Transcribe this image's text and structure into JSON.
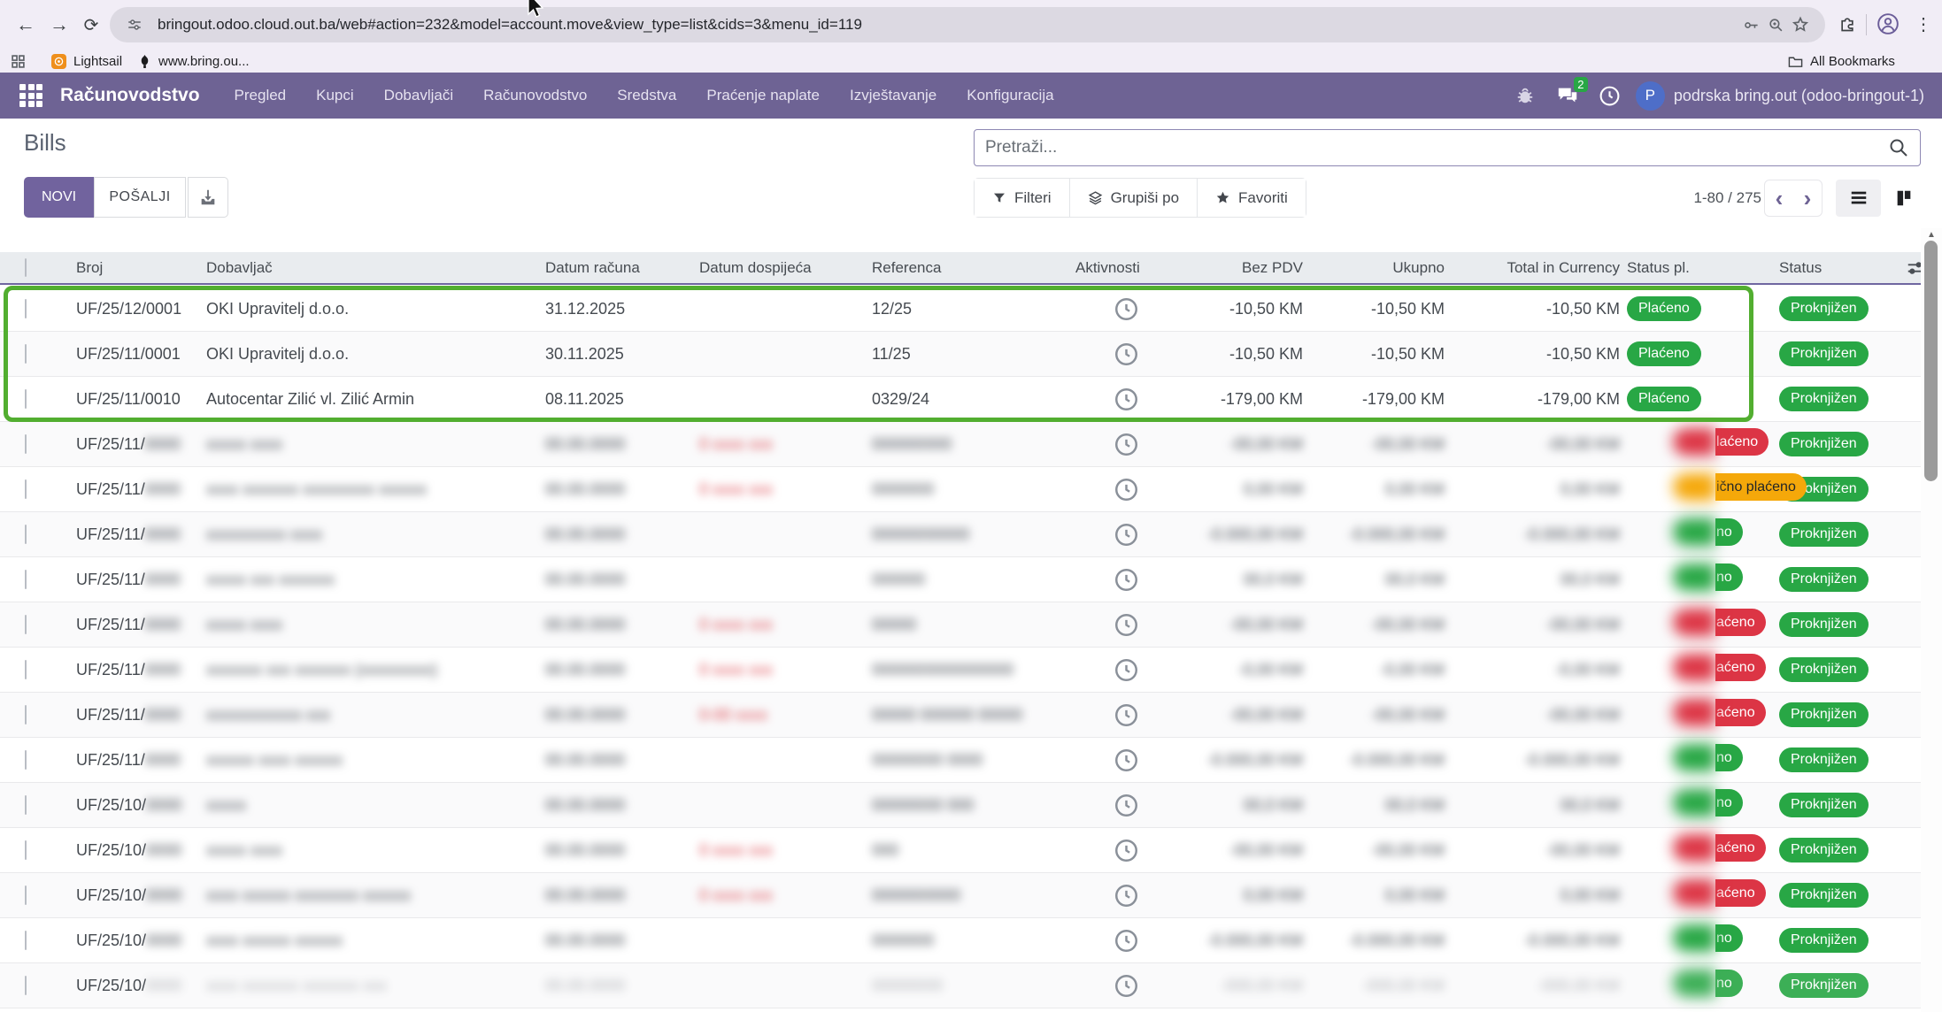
{
  "browser": {
    "url": "bringout.odoo.cloud.out.ba/web#action=232&model=account.move&view_type=list&cids=3&menu_id=119",
    "bookmark1": "Lightsail",
    "bookmark2": "www.bring.ou...",
    "all_bookmarks": "All Bookmarks"
  },
  "nav": {
    "app_name": "Računovodstvo",
    "menu_items": [
      "Pregled",
      "Kupci",
      "Dobavljači",
      "Računovodstvo",
      "Sredstva",
      "Praćenje naplate",
      "Izvještavanje",
      "Konfiguracija"
    ],
    "message_count": "2",
    "user_initial": "P",
    "user_name": "podrska bring.out (odoo-bringout-1)"
  },
  "control_panel": {
    "title": "Bills",
    "new_button": "NOVI",
    "send_button": "POŠALJI",
    "search_placeholder": "Pretraži...",
    "filters_button": "Filteri",
    "groupby_button": "Grupiši po",
    "favorites_button": "Favoriti",
    "pager": "1-80 / 275"
  },
  "annotation_color": "#52ae30",
  "status_colors": {
    "green": "#28a745",
    "red": "#dc3545",
    "orange": "#f5a80a"
  },
  "table": {
    "headers": [
      "Broj",
      "Dobavljač",
      "Datum računa",
      "Datum dospijeća",
      "Referenca",
      "Aktivnosti",
      "Bez PDV",
      "Ukupno",
      "Total in Currency",
      "Status pl.",
      "Status"
    ],
    "rows": [
      {
        "redacted": false,
        "number": "UF/25/12/0001",
        "supplier": "OKI Upravitelj d.o.o.",
        "invoice_date": "31.12.2025",
        "due_date": "",
        "reference": "12/25",
        "untaxed": "-10,50 KM",
        "total": "-10,50 KM",
        "total_currency": "-10,50 KM",
        "payment_status": {
          "label": "Plaćeno",
          "variant": "green"
        },
        "status": "Proknjižen"
      },
      {
        "redacted": false,
        "number": "UF/25/11/0001",
        "supplier": "OKI Upravitelj d.o.o.",
        "invoice_date": "30.11.2025",
        "due_date": "",
        "reference": "11/25",
        "untaxed": "-10,50 KM",
        "total": "-10,50 KM",
        "total_currency": "-10,50 KM",
        "payment_status": {
          "label": "Plaćeno",
          "variant": "green"
        },
        "status": "Proknjižen"
      },
      {
        "redacted": false,
        "number": "UF/25/11/0010",
        "supplier": "Autocentar Zilić vl. Zilić Armin",
        "invoice_date": "08.11.2025",
        "due_date": "",
        "reference": "0329/24",
        "untaxed": "-179,00 KM",
        "total": "-179,00 KM",
        "total_currency": "-179,00 KM",
        "payment_status": {
          "label": "Plaćeno",
          "variant": "green"
        },
        "status": "Proknjižen"
      },
      {
        "redacted": true,
        "number_prefix": "UF/25/11/",
        "number_blob": "0000",
        "supplier_blob": "xxxxx xxxx",
        "date_blob": "00.00.0000",
        "due_blob": "0 xxxx xxx",
        "ref_blob": "000000000",
        "amt_blob": "-00,00 KM",
        "payment_status": {
          "fragment": "laćeno",
          "variant": "red"
        },
        "status": "Proknjižen",
        "faded": false
      },
      {
        "redacted": true,
        "number_prefix": "UF/25/11/",
        "number_blob": "0000",
        "supplier_blob": "xxxx xxxxxxx xxxxxxxxx xxxxxx",
        "date_blob": "00.00.0000",
        "due_blob": "0 xxxx xxx",
        "ref_blob": "0000000",
        "amt_blob": "0,00 KM",
        "payment_status": {
          "fragment": "ično plaćeno",
          "variant": "orange"
        },
        "status": "Proknjižen",
        "faded": false
      },
      {
        "redacted": true,
        "number_prefix": "UF/25/11/",
        "number_blob": "0000",
        "supplier_blob": "xxxxxxxxxx xxxx",
        "date_blob": "00.00.0000",
        "due_blob": "",
        "ref_blob": "00000000000",
        "amt_blob": "-0.000,00 KM",
        "payment_status": {
          "fragment": "no",
          "variant": "green"
        },
        "status": "Proknjižen",
        "faded": false
      },
      {
        "redacted": true,
        "number_prefix": "UF/25/11/",
        "number_blob": "0000",
        "supplier_blob": "xxxxx xxx xxxxxxx",
        "date_blob": "00.00.0000",
        "due_blob": "",
        "ref_blob": "000000",
        "amt_blob": "00,0 KM",
        "payment_status": {
          "fragment": "no",
          "variant": "green"
        },
        "status": "Proknjižen",
        "faded": false
      },
      {
        "redacted": true,
        "number_prefix": "UF/25/11/",
        "number_blob": "0000",
        "supplier_blob": "xxxxx xxxx",
        "date_blob": "00.00.0000",
        "due_blob": "0 xxxx xxx",
        "ref_blob": "00000",
        "amt_blob": "-00,00 KM",
        "payment_status": {
          "fragment": "aćeno",
          "variant": "red"
        },
        "status": "Proknjižen",
        "faded": false
      },
      {
        "redacted": true,
        "number_prefix": "UF/25/11/",
        "number_blob": "0000",
        "supplier_blob": "xxxxxxx xxx xxxxxxx (xxxxxxxxx)",
        "date_blob": "00.00.0000",
        "due_blob": "0 xxxx xxx",
        "ref_blob": "0000000000000000",
        "amt_blob": "-0,00 KM",
        "payment_status": {
          "fragment": "aćeno",
          "variant": "red"
        },
        "status": "Proknjižen",
        "faded": false
      },
      {
        "redacted": true,
        "number_prefix": "UF/25/11/",
        "number_blob": "0000",
        "supplier_blob": "xxxxxxxxxxxx xxx",
        "date_blob": "00.00.0000",
        "due_blob": "0-00 xxxx",
        "ref_blob": "00000 000000 00000",
        "amt_blob": "-00,00 KM",
        "payment_status": {
          "fragment": "aćeno",
          "variant": "red"
        },
        "status": "Proknjižen",
        "faded": false
      },
      {
        "redacted": true,
        "number_prefix": "UF/25/11/",
        "number_blob": "0000",
        "supplier_blob": "xxxxxx xxxx xxxxxx",
        "date_blob": "00.00.0000",
        "due_blob": "",
        "ref_blob": "00000000 0000",
        "amt_blob": "-0.000,00 KM",
        "payment_status": {
          "fragment": "no",
          "variant": "green"
        },
        "status": "Proknjižen",
        "faded": false
      },
      {
        "redacted": true,
        "number_prefix": "UF/25/10/",
        "number_blob": "0000",
        "supplier_blob": "xxxxx",
        "date_blob": "00.00.0000",
        "due_blob": "",
        "ref_blob": "00000000 000",
        "amt_blob": "00,0 KM",
        "payment_status": {
          "fragment": "no",
          "variant": "green"
        },
        "status": "Proknjižen",
        "faded": false
      },
      {
        "redacted": true,
        "number_prefix": "UF/25/10/",
        "number_blob": "0000",
        "supplier_blob": "xxxxx xxxx",
        "date_blob": "00.00.0000",
        "due_blob": "0 xxxx xxx",
        "ref_blob": "000",
        "amt_blob": "-00,00 KM",
        "payment_status": {
          "fragment": "aćeno",
          "variant": "red"
        },
        "status": "Proknjižen",
        "faded": false
      },
      {
        "redacted": true,
        "number_prefix": "UF/25/10/",
        "number_blob": "0000",
        "supplier_blob": "xxxx xxxxxx xxxxxxxx xxxxxx",
        "date_blob": "00.00.0000",
        "due_blob": "0 xxxx xxx",
        "ref_blob": "0000000000",
        "amt_blob": "0,00 KM",
        "payment_status": {
          "fragment": "aćeno",
          "variant": "red"
        },
        "status": "Proknjižen",
        "faded": false
      },
      {
        "redacted": true,
        "number_prefix": "UF/25/10/",
        "number_blob": "0000",
        "supplier_blob": "xxxx xxxxxx xxxxxx",
        "date_blob": "00.00.0000",
        "due_blob": "",
        "ref_blob": "0000000",
        "amt_blob": "-0.000,00 KM",
        "payment_status": {
          "fragment": "no",
          "variant": "green"
        },
        "status": "Proknjižen",
        "faded": false
      },
      {
        "redacted": true,
        "number_prefix": "UF/25/10/",
        "number_blob": "0000",
        "supplier_blob": "xxxx xxxxxxx xxxxxxx xxx",
        "date_blob": "00.00.0000",
        "due_blob": "",
        "ref_blob": "00000000",
        "amt_blob": "-000,00 KM",
        "payment_status": {
          "fragment": "no",
          "variant": "green"
        },
        "status": "Proknjižen",
        "faded": true
      }
    ]
  }
}
